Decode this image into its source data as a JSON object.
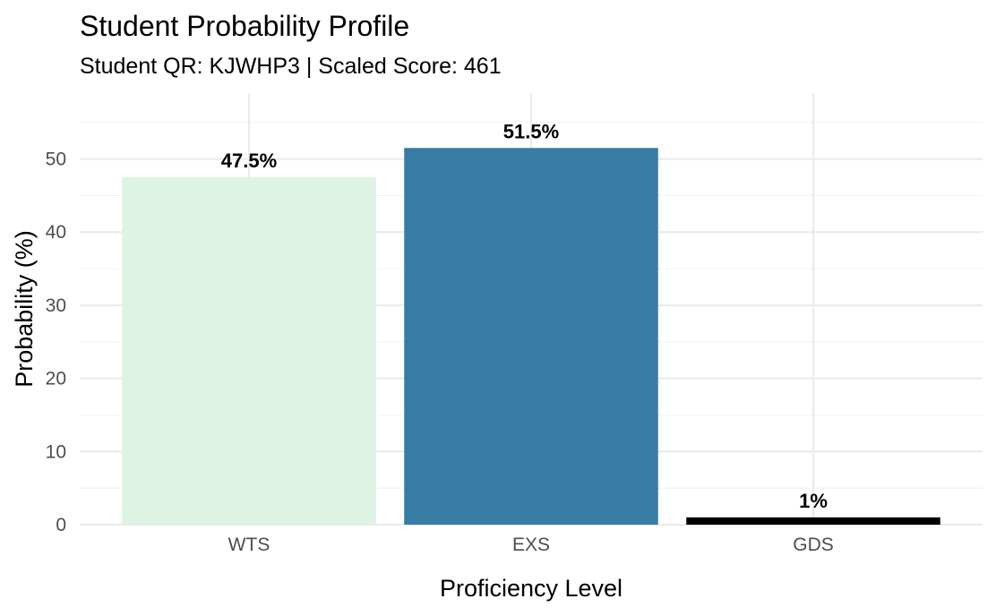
{
  "chart_data": {
    "type": "bar",
    "title": "Student Probability Profile",
    "subtitle": "Student QR: KJWHP3 | Scaled Score: 461",
    "xlabel": "Proficiency Level",
    "ylabel": "Probability (%)",
    "categories": [
      "WTS",
      "EXS",
      "GDS"
    ],
    "values": [
      47.5,
      51.5,
      1
    ],
    "value_labels": [
      "47.5%",
      "51.5%",
      "1%"
    ],
    "colors": [
      "#ddf3e4",
      "#377ca3",
      "#000000"
    ],
    "ylim": [
      0,
      59
    ],
    "yticks": [
      0,
      10,
      20,
      30,
      40,
      50
    ],
    "ytick_labels": [
      "0",
      "10",
      "20",
      "30",
      "40",
      "50"
    ],
    "grid": true,
    "legend": "none"
  }
}
